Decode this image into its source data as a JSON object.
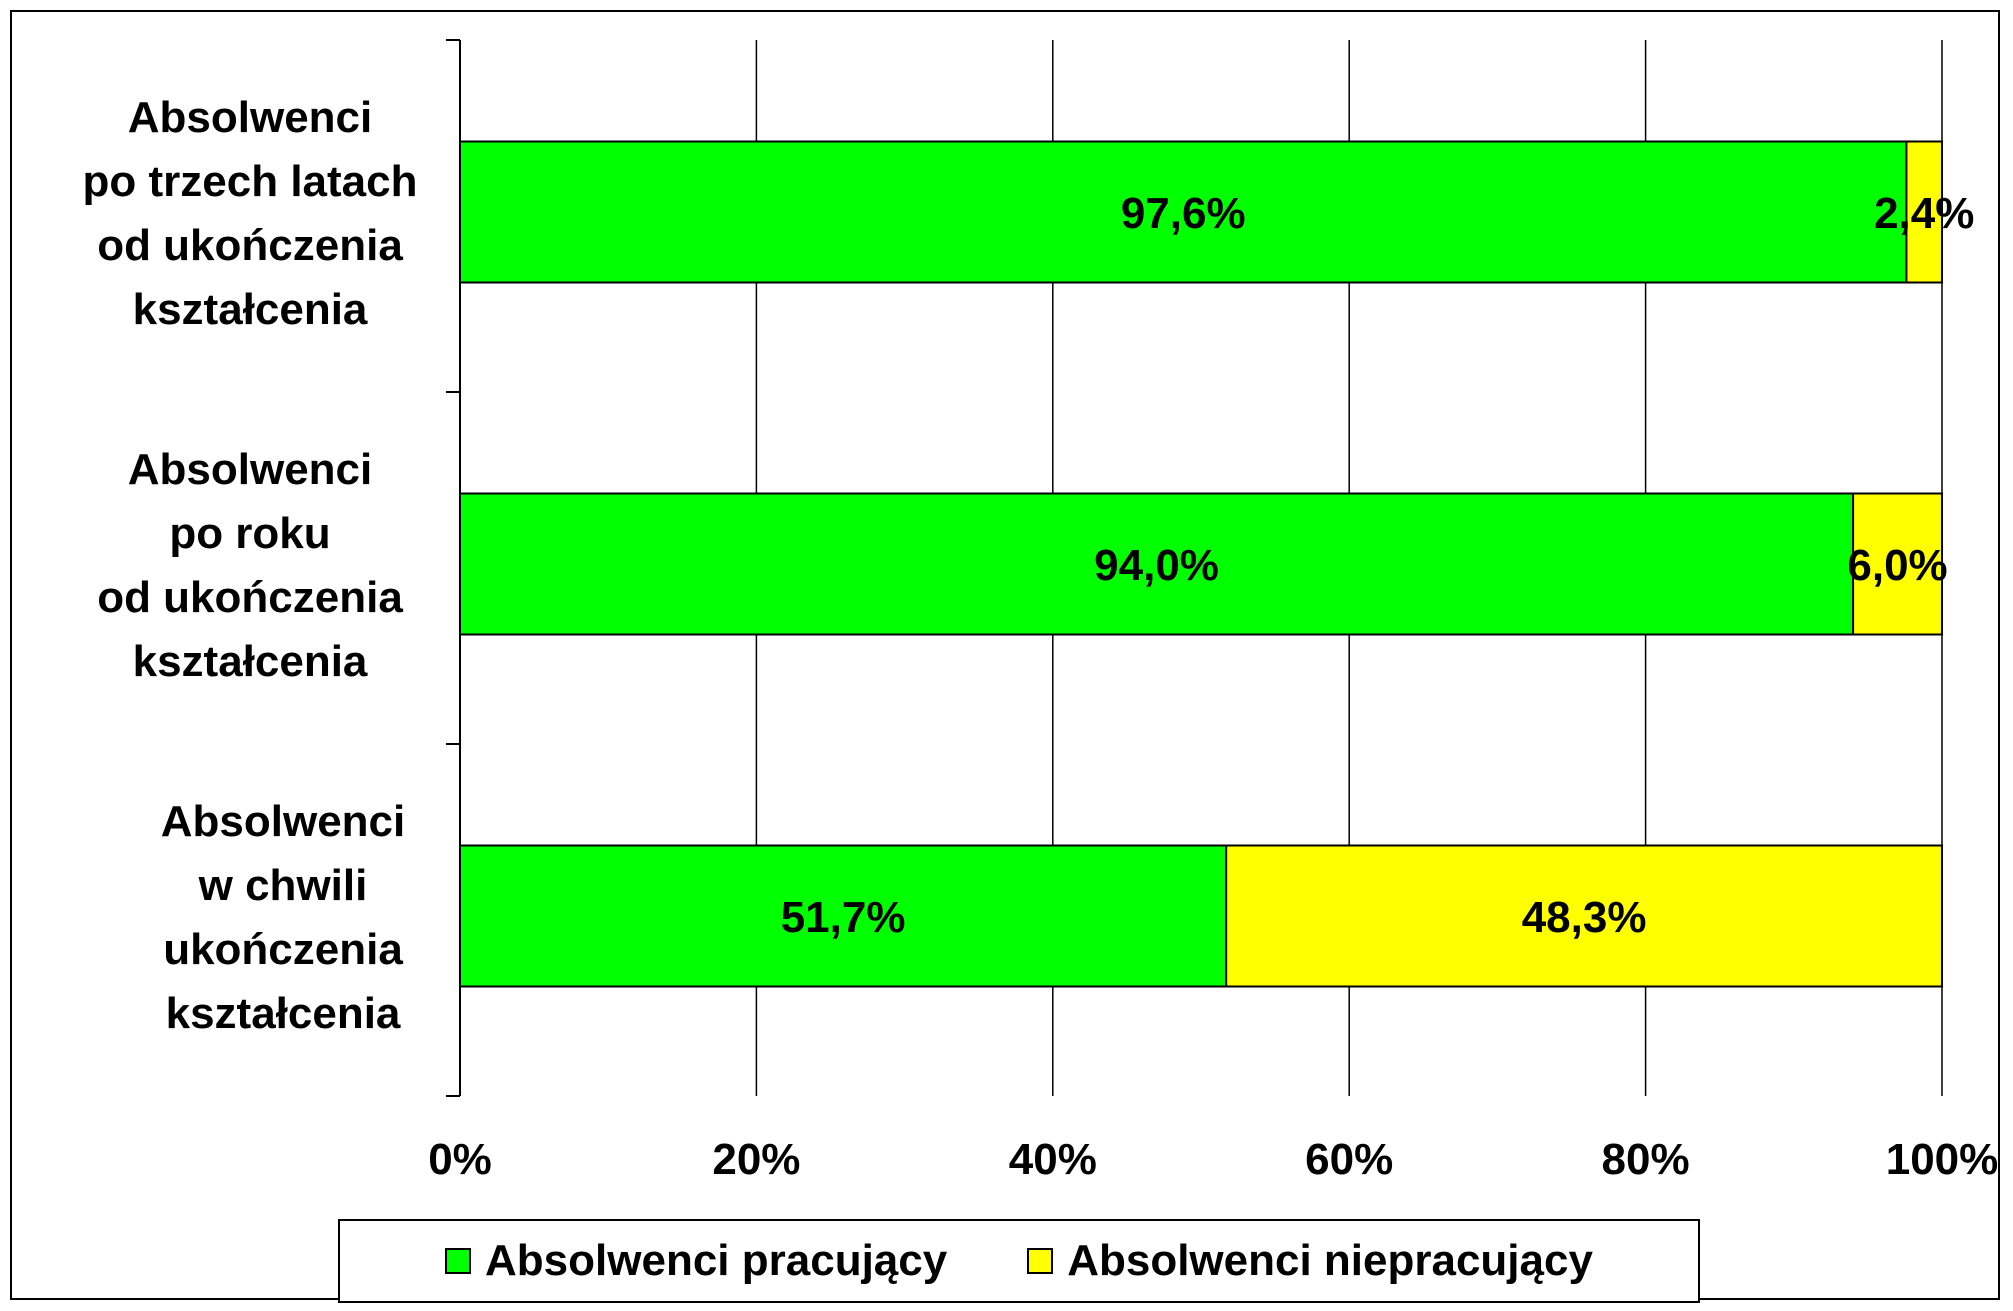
{
  "chart_data": {
    "type": "bar",
    "orientation": "horizontal",
    "stacked": true,
    "categories": [
      [
        "Absolwenci",
        "po trzech latach",
        "od ukończenia",
        "kształcenia"
      ],
      [
        "Absolwenci",
        "po roku",
        "od ukończenia",
        "kształcenia"
      ],
      [
        "Absolwenci",
        "w chwili",
        "ukończenia",
        "kształcenia"
      ]
    ],
    "series": [
      {
        "name": "Absolwenci pracujący",
        "color": "#00ff00",
        "values": [
          97.6,
          94.0,
          51.7
        ],
        "labels": [
          "97,6%",
          "94,0%",
          "51,7%"
        ]
      },
      {
        "name": "Absolwenci niepracujący",
        "color": "#ffff00",
        "values": [
          2.4,
          6.0,
          48.3
        ],
        "labels": [
          "2,4%",
          "6,0%",
          "48,3%"
        ]
      }
    ],
    "xlim": [
      0,
      100
    ],
    "xticks": [
      "0%",
      "20%",
      "40%",
      "60%",
      "80%",
      "100%"
    ],
    "grid": true,
    "legend_position": "bottom"
  }
}
